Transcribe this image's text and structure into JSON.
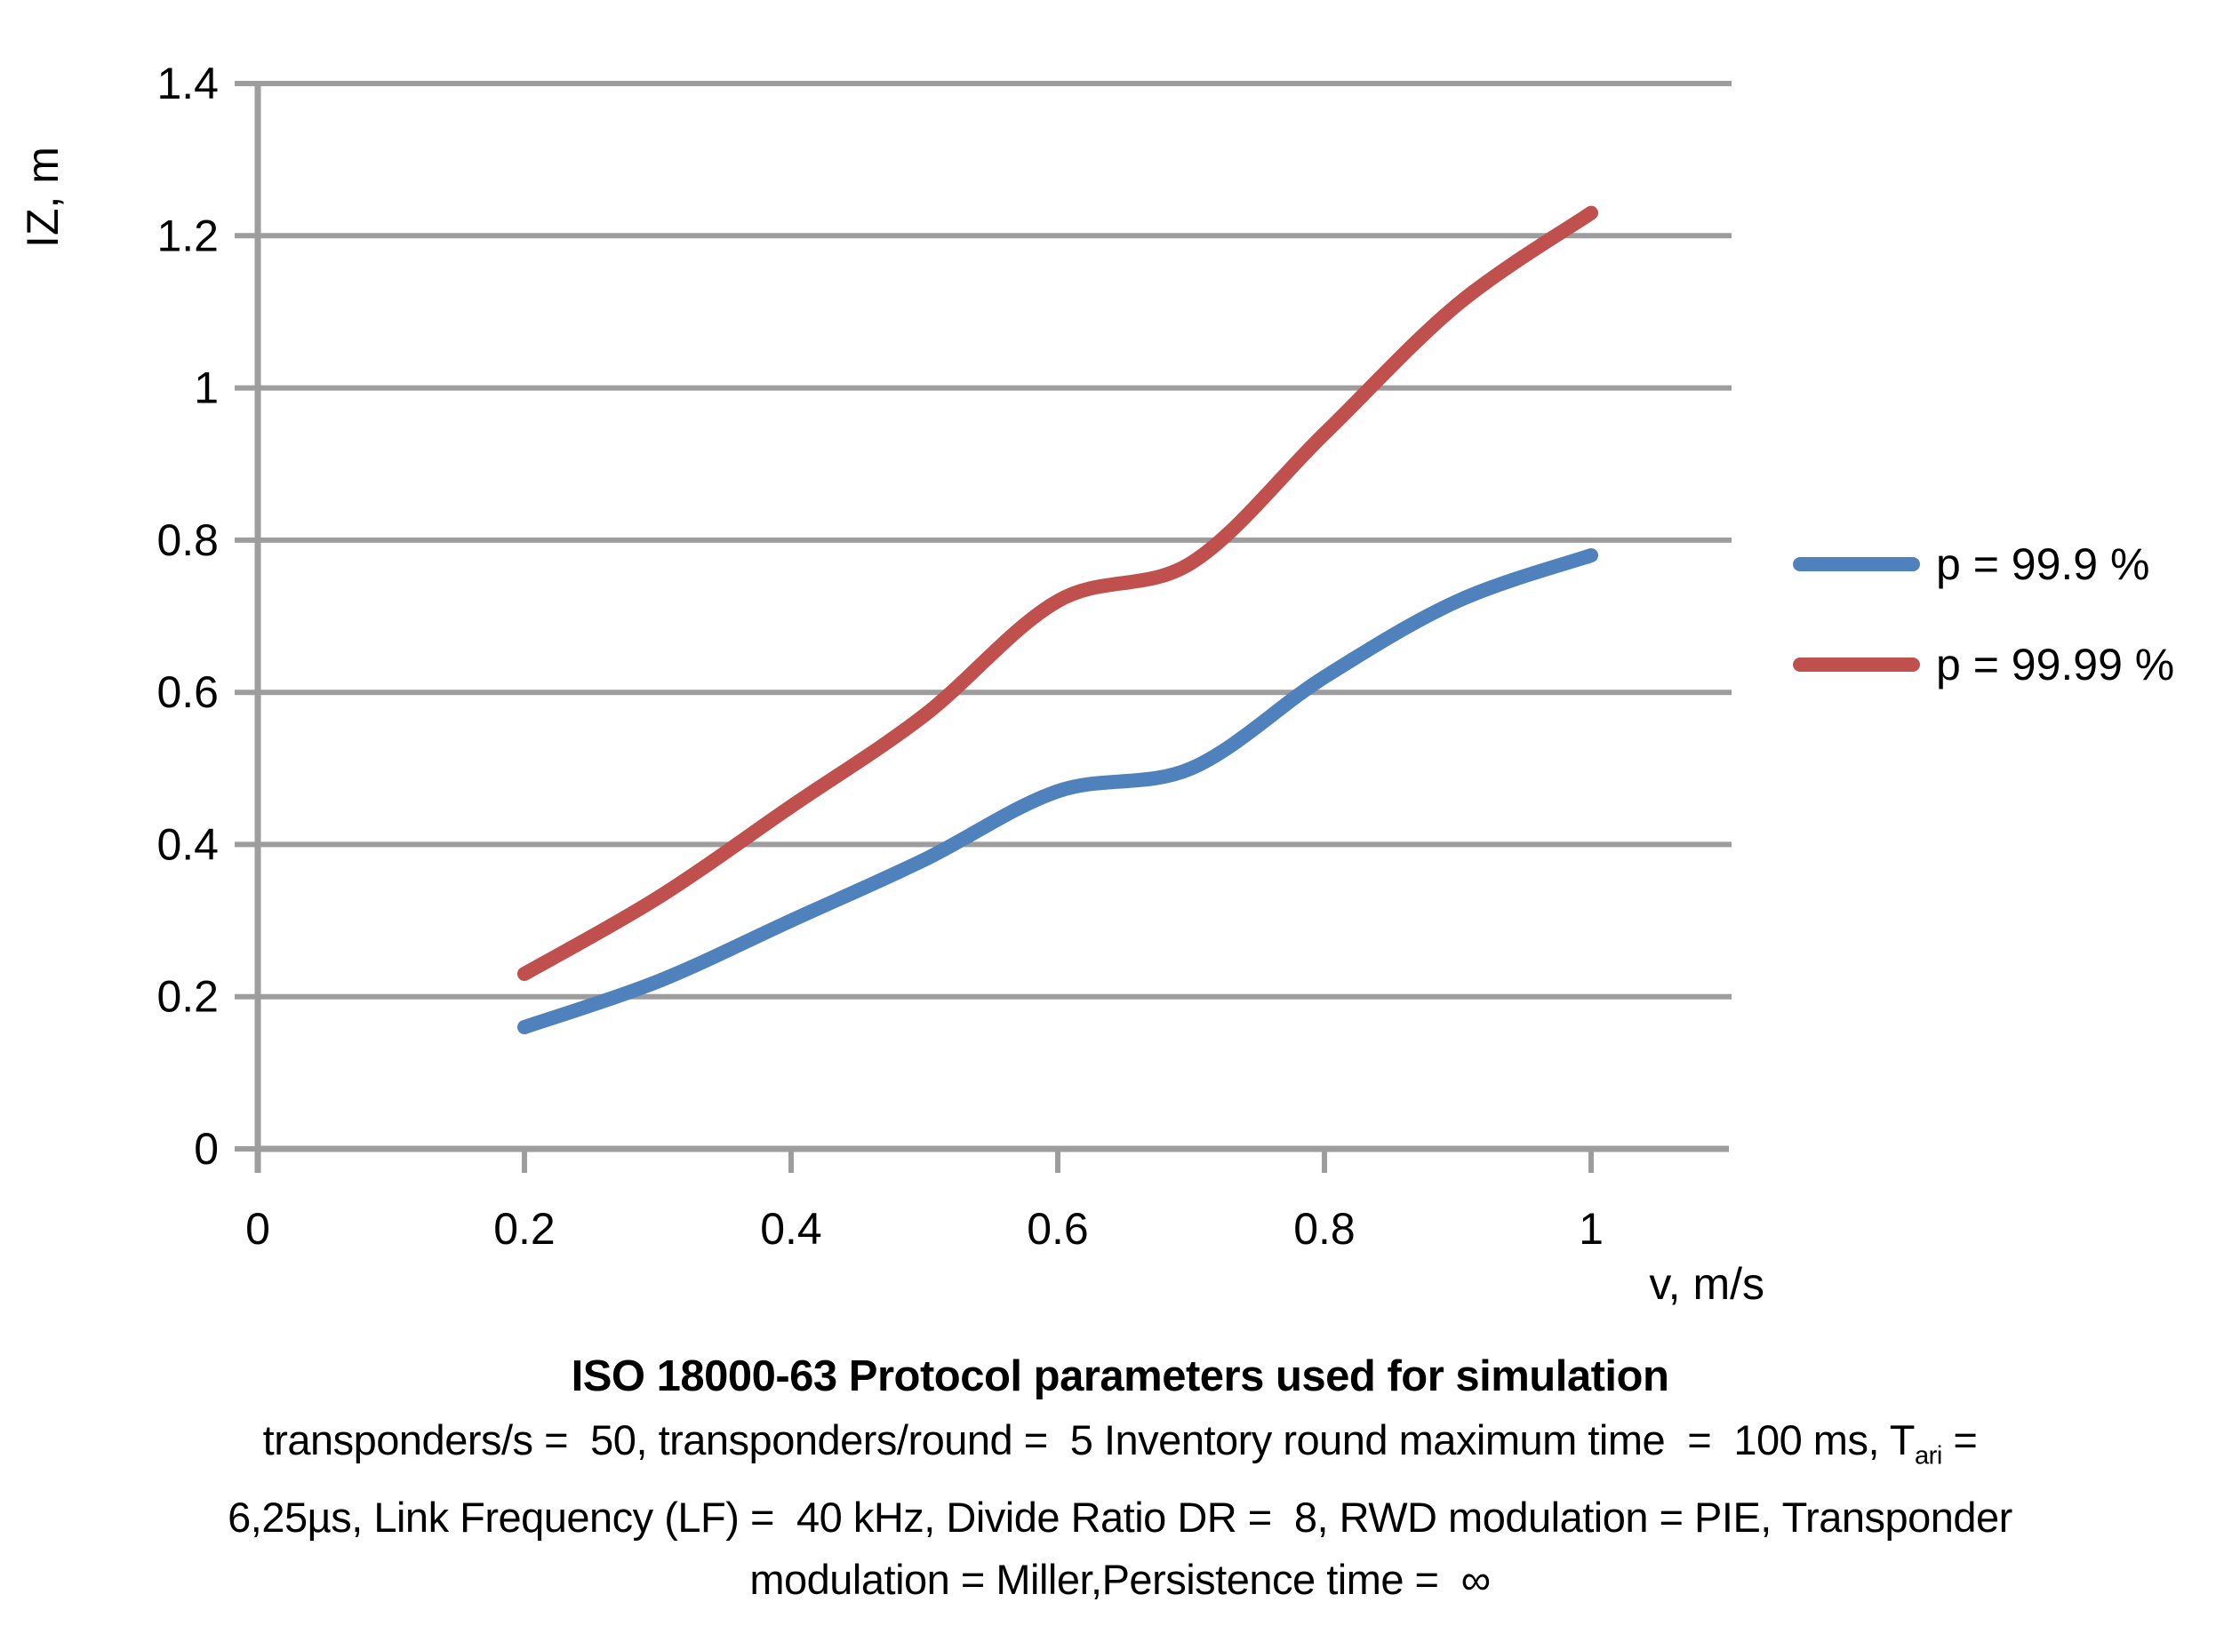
{
  "figure": {
    "background": "#ffffff",
    "text_color": "#000000"
  },
  "chart_data": {
    "type": "line",
    "title": "ISO 18000-63 Protocol parameters used for simulation",
    "xlabel": "v, m/s",
    "ylabel": "IZ, m",
    "xlim": [
      0,
      1.1
    ],
    "ylim": [
      0,
      1.4
    ],
    "x_ticks": [
      "0",
      "0.2",
      "0.4",
      "0.6",
      "0.8",
      "1"
    ],
    "y_ticks": [
      "0",
      "0.2",
      "0.4",
      "0.6",
      "0.8",
      "1",
      "1.2",
      "1.4"
    ],
    "grid": "horizontal",
    "gridline_color": "#9d9d9d",
    "axis_color": "#9d9d9d",
    "legend_position": "right",
    "line_style": "smooth",
    "x": [
      0.2,
      0.3,
      0.4,
      0.5,
      0.6,
      0.7,
      0.8,
      0.9,
      1.0
    ],
    "series": [
      {
        "name": "p = 99.9 %",
        "color": "#4F81BD",
        "values": [
          0.16,
          0.22,
          0.3,
          0.38,
          0.47,
          0.5,
          0.62,
          0.72,
          0.78
        ]
      },
      {
        "name": "p = 99.99 %",
        "color": "#C0504D",
        "values": [
          0.23,
          0.33,
          0.45,
          0.57,
          0.72,
          0.77,
          0.94,
          1.11,
          1.23
        ]
      }
    ]
  },
  "caption": {
    "title": "ISO 18000-63 Protocol parameters used for simulation",
    "line1_pre": "transponders/s =  50, transponders/round =  5 Inventory round maximum time  =  100 ms, T",
    "line1_sub": "ari",
    "line1_post": " =",
    "line2": "6,25µs, Link Frequency (LF) =  40 kHz, Divide Ratio DR =  8, RWD modulation = PIE, Transponder",
    "line3": "modulation = Miller,Persistence time =  ∞"
  }
}
